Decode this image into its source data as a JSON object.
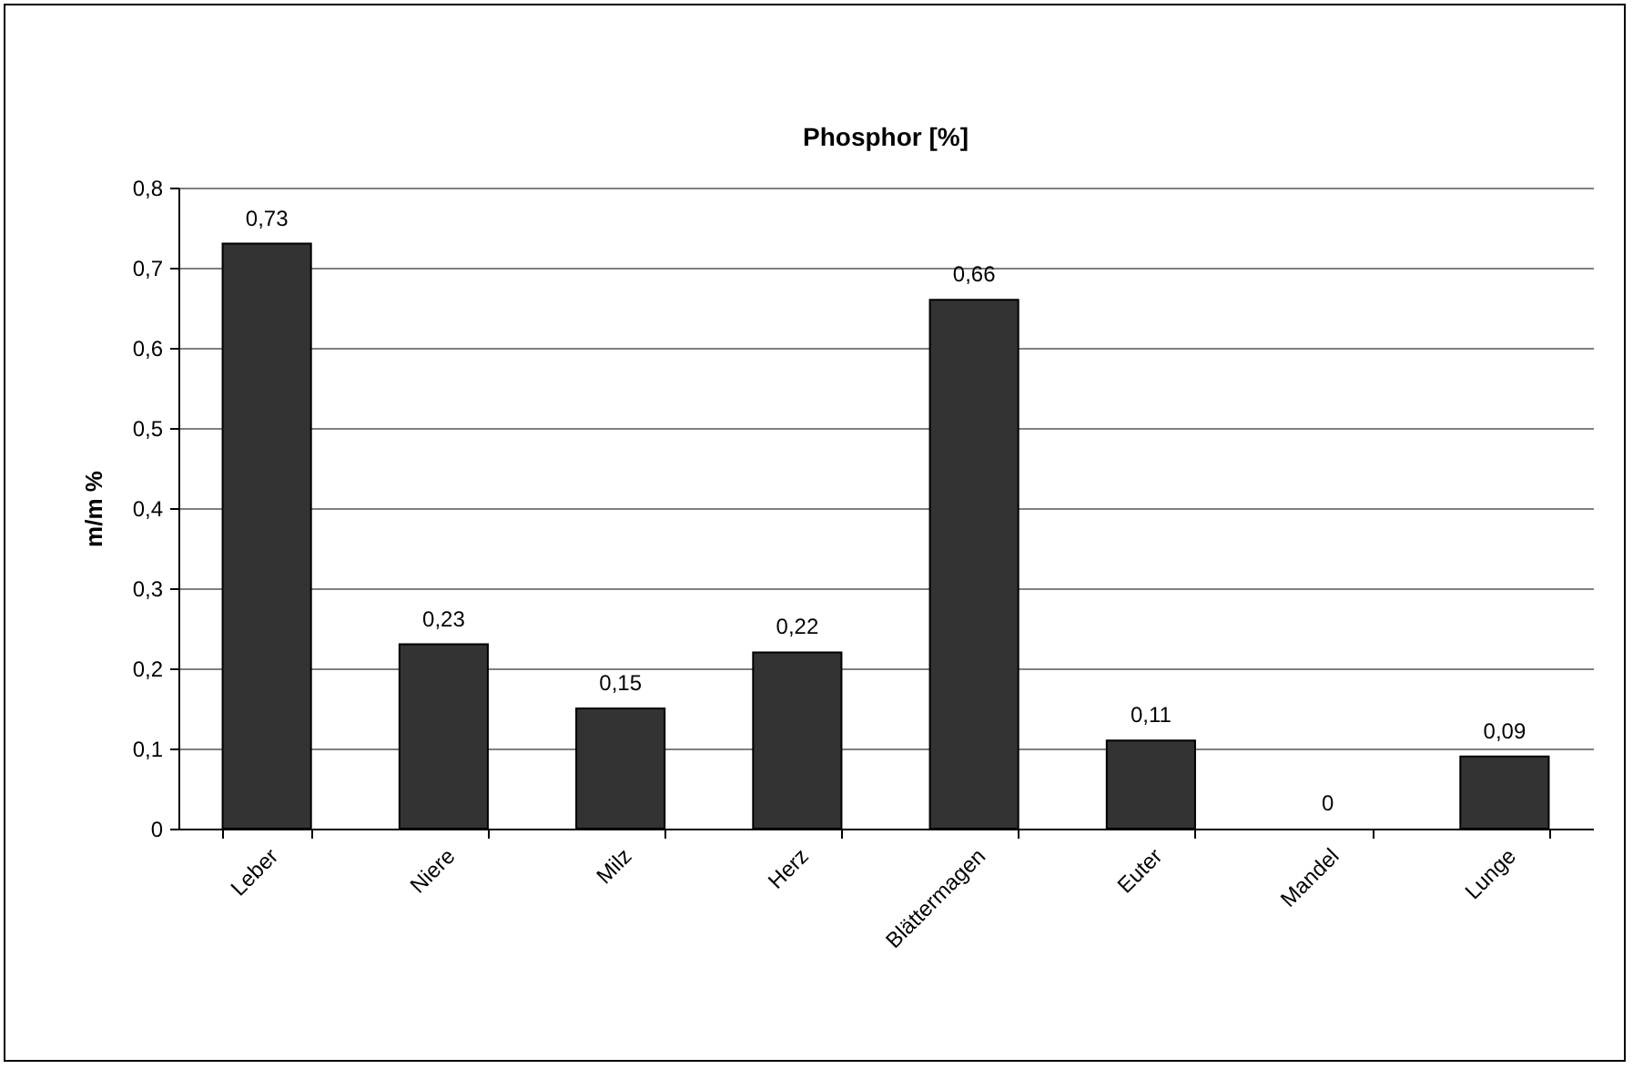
{
  "chart_data": {
    "type": "bar",
    "title": "Phosphor [%]",
    "ylabel": "m/m %",
    "categories": [
      "Leber",
      "Niere",
      "Milz",
      "Herz",
      "Blättermagen",
      "Euter",
      "Mandel",
      "Lunge"
    ],
    "values": [
      0.73,
      0.23,
      0.15,
      0.22,
      0.66,
      0.11,
      0,
      0.09
    ],
    "value_labels": [
      "0,73",
      "0,23",
      "0,15",
      "0,22",
      "0,66",
      "0,11",
      "0",
      "0,09"
    ],
    "color": "#333333",
    "ylim": [
      0,
      0.8
    ],
    "yticks": [
      {
        "value": 0,
        "label": "0"
      },
      {
        "value": 0.1,
        "label": "0,1"
      },
      {
        "value": 0.2,
        "label": "0,2"
      },
      {
        "value": 0.3,
        "label": "0,3"
      },
      {
        "value": 0.4,
        "label": "0,4"
      },
      {
        "value": 0.5,
        "label": "0,5"
      },
      {
        "value": 0.6,
        "label": "0,6"
      },
      {
        "value": 0.7,
        "label": "0,7"
      },
      {
        "value": 0.8,
        "label": "0,8"
      }
    ],
    "grid": "y"
  }
}
